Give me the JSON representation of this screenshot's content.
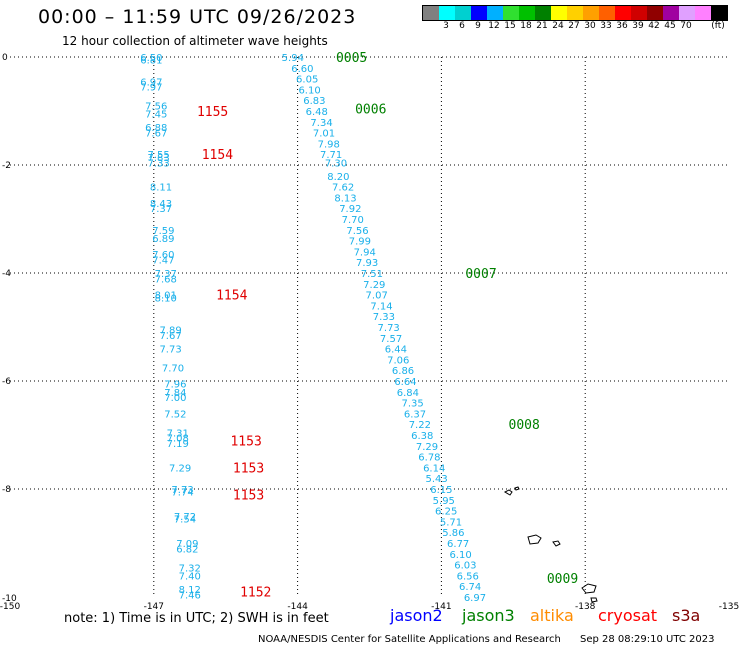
{
  "title": "00:00 – 11:59 UTC 09/26/2023",
  "subtitle": "12 hour collection of altimeter wave heights",
  "colorbar": {
    "colors": [
      "#808080",
      "#00ffff",
      "#00d0d0",
      "#0000ff",
      "#00b0ff",
      "#30e030",
      "#00c000",
      "#008000",
      "#ffff00",
      "#ffd000",
      "#ffa000",
      "#ff6000",
      "#ff0000",
      "#d00000",
      "#900000",
      "#a000a0",
      "#e0a0ff",
      "#ff80ff",
      "#000000"
    ],
    "labels": [
      "3",
      "6",
      "9",
      "12",
      "15",
      "18",
      "21",
      "24",
      "27",
      "30",
      "33",
      "36",
      "39",
      "42",
      "45",
      "70",
      "(ft)"
    ]
  },
  "axes": {
    "x_ticks": [
      "-150",
      "-147",
      "-144",
      "-141",
      "-138",
      "-135"
    ],
    "y_ticks": [
      "0",
      "-2",
      "-4",
      "-6",
      "-8",
      "-10"
    ]
  },
  "tracks": [
    {
      "satellite": "cryosat",
      "labels": [
        {
          "text": "1155",
          "lon": -146.1,
          "lat": -1.0
        },
        {
          "text": "1154",
          "lon": -146.0,
          "lat": -1.8
        },
        {
          "text": "1154",
          "lon": -145.7,
          "lat": -4.4
        },
        {
          "text": "1153",
          "lon": -145.4,
          "lat": -7.1
        },
        {
          "text": "1153",
          "lon": -145.35,
          "lat": -7.6
        },
        {
          "text": "1153",
          "lon": -145.35,
          "lat": -8.1
        },
        {
          "text": "1152",
          "lon": -145.2,
          "lat": -9.9
        }
      ],
      "points": [
        {
          "v": "6.50",
          "lon": -147.05,
          "lat": 0.0
        },
        {
          "v": "6.81",
          "lon": -147.05,
          "lat": -0.05
        },
        {
          "v": "6.97",
          "lon": -147.05,
          "lat": -0.45
        },
        {
          "v": "7.97",
          "lon": -147.05,
          "lat": -0.55
        },
        {
          "v": "7.56",
          "lon": -146.95,
          "lat": -0.9
        },
        {
          "v": "7.45",
          "lon": -146.95,
          "lat": -1.05
        },
        {
          "v": "6.88",
          "lon": -146.95,
          "lat": -1.3
        },
        {
          "v": "7.67",
          "lon": -146.95,
          "lat": -1.4
        },
        {
          "v": "7.55",
          "lon": -146.9,
          "lat": -1.8
        },
        {
          "v": "7.83",
          "lon": -146.9,
          "lat": -1.85
        },
        {
          "v": "7.33",
          "lon": -146.9,
          "lat": -1.95
        },
        {
          "v": "8.11",
          "lon": -146.85,
          "lat": -2.4
        },
        {
          "v": "8.43",
          "lon": -146.85,
          "lat": -2.7
        },
        {
          "v": "7.37",
          "lon": -146.85,
          "lat": -2.8
        },
        {
          "v": "7.59",
          "lon": -146.8,
          "lat": -3.2
        },
        {
          "v": "6.89",
          "lon": -146.8,
          "lat": -3.35
        },
        {
          "v": "7.60",
          "lon": -146.8,
          "lat": -3.65
        },
        {
          "v": "7.47",
          "lon": -146.8,
          "lat": -3.75
        },
        {
          "v": "7.37",
          "lon": -146.75,
          "lat": -4.0
        },
        {
          "v": "7.68",
          "lon": -146.75,
          "lat": -4.1
        },
        {
          "v": "8.01",
          "lon": -146.75,
          "lat": -4.4
        },
        {
          "v": "8.10",
          "lon": -146.75,
          "lat": -4.45
        },
        {
          "v": "7.89",
          "lon": -146.65,
          "lat": -5.05
        },
        {
          "v": "7.67",
          "lon": -146.65,
          "lat": -5.15
        },
        {
          "v": "7.73",
          "lon": -146.65,
          "lat": -5.4
        },
        {
          "v": "7.70",
          "lon": -146.6,
          "lat": -5.75
        },
        {
          "v": "7.96",
          "lon": -146.55,
          "lat": -6.05
        },
        {
          "v": "7.84",
          "lon": -146.55,
          "lat": -6.2
        },
        {
          "v": "7.00",
          "lon": -146.55,
          "lat": -6.3
        },
        {
          "v": "7.52",
          "lon": -146.55,
          "lat": -6.6
        },
        {
          "v": "7.31",
          "lon": -146.5,
          "lat": -6.95
        },
        {
          "v": "7.08",
          "lon": -146.5,
          "lat": -7.05
        },
        {
          "v": "7.19",
          "lon": -146.5,
          "lat": -7.15
        },
        {
          "v": "7.29",
          "lon": -146.45,
          "lat": -7.6
        },
        {
          "v": "7.73",
          "lon": -146.4,
          "lat": -8.0
        },
        {
          "v": "7.74",
          "lon": -146.4,
          "lat": -8.05
        },
        {
          "v": "7.72",
          "lon": -146.35,
          "lat": -8.5
        },
        {
          "v": "7.54",
          "lon": -146.35,
          "lat": -8.55
        },
        {
          "v": "7.09",
          "lon": -146.3,
          "lat": -9.0
        },
        {
          "v": "6.82",
          "lon": -146.3,
          "lat": -9.1
        },
        {
          "v": "7.32",
          "lon": -146.25,
          "lat": -9.45
        },
        {
          "v": "7.40",
          "lon": -146.25,
          "lat": -9.6
        },
        {
          "v": "8.12",
          "lon": -146.25,
          "lat": -9.85
        },
        {
          "v": "7.46",
          "lon": -146.25,
          "lat": -9.95
        }
      ]
    },
    {
      "satellite": "jason3",
      "labels": [
        {
          "text": "0005",
          "lon": -143.2,
          "lat": 0.0
        },
        {
          "text": "0006",
          "lon": -142.8,
          "lat": -0.95
        },
        {
          "text": "0007",
          "lon": -140.5,
          "lat": -4.0
        },
        {
          "text": "0008",
          "lon": -139.6,
          "lat": -6.8
        },
        {
          "text": "0009",
          "lon": -138.8,
          "lat": -9.65
        }
      ],
      "points": [
        {
          "v": "5.94",
          "lon": -144.1,
          "lat": 0.0
        },
        {
          "v": "6.60",
          "lon": -143.9,
          "lat": -0.2
        },
        {
          "v": "6.05",
          "lon": -143.8,
          "lat": -0.4
        },
        {
          "v": "6.10",
          "lon": -143.75,
          "lat": -0.6
        },
        {
          "v": "6.83",
          "lon": -143.65,
          "lat": -0.8
        },
        {
          "v": "6.48",
          "lon": -143.6,
          "lat": -1.0
        },
        {
          "v": "7.34",
          "lon": -143.5,
          "lat": -1.2
        },
        {
          "v": "7.01",
          "lon": -143.45,
          "lat": -1.4
        },
        {
          "v": "7.98",
          "lon": -143.35,
          "lat": -1.6
        },
        {
          "v": "7.71",
          "lon": -143.3,
          "lat": -1.8
        },
        {
          "v": "7.30",
          "lon": -143.2,
          "lat": -1.95
        },
        {
          "v": "8.20",
          "lon": -143.15,
          "lat": -2.2
        },
        {
          "v": "7.62",
          "lon": -143.05,
          "lat": -2.4
        },
        {
          "v": "8.13",
          "lon": -143.0,
          "lat": -2.6
        },
        {
          "v": "7.92",
          "lon": -142.9,
          "lat": -2.8
        },
        {
          "v": "7.70",
          "lon": -142.85,
          "lat": -3.0
        },
        {
          "v": "7.56",
          "lon": -142.75,
          "lat": -3.2
        },
        {
          "v": "7.99",
          "lon": -142.7,
          "lat": -3.4
        },
        {
          "v": "7.94",
          "lon": -142.6,
          "lat": -3.6
        },
        {
          "v": "7.93",
          "lon": -142.55,
          "lat": -3.8
        },
        {
          "v": "7.51",
          "lon": -142.45,
          "lat": -4.0
        },
        {
          "v": "7.29",
          "lon": -142.4,
          "lat": -4.2
        },
        {
          "v": "7.07",
          "lon": -142.35,
          "lat": -4.4
        },
        {
          "v": "7.14",
          "lon": -142.25,
          "lat": -4.6
        },
        {
          "v": "7.33",
          "lon": -142.2,
          "lat": -4.8
        },
        {
          "v": "7.73",
          "lon": -142.1,
          "lat": -5.0
        },
        {
          "v": "7.57",
          "lon": -142.05,
          "lat": -5.2
        },
        {
          "v": "6.44",
          "lon": -141.95,
          "lat": -5.4
        },
        {
          "v": "7.06",
          "lon": -141.9,
          "lat": -5.6
        },
        {
          "v": "6.86",
          "lon": -141.8,
          "lat": -5.8
        },
        {
          "v": "6.64",
          "lon": -141.75,
          "lat": -6.0
        },
        {
          "v": "6.84",
          "lon": -141.7,
          "lat": -6.2
        },
        {
          "v": "7.35",
          "lon": -141.6,
          "lat": -6.4
        },
        {
          "v": "6.37",
          "lon": -141.55,
          "lat": -6.6
        },
        {
          "v": "7.22",
          "lon": -141.45,
          "lat": -6.8
        },
        {
          "v": "6.38",
          "lon": -141.4,
          "lat": -7.0
        },
        {
          "v": "7.29",
          "lon": -141.3,
          "lat": -7.2
        },
        {
          "v": "6.78",
          "lon": -141.25,
          "lat": -7.4
        },
        {
          "v": "6.14",
          "lon": -141.15,
          "lat": -7.6
        },
        {
          "v": "5.43",
          "lon": -141.1,
          "lat": -7.8
        },
        {
          "v": "6.15",
          "lon": -141.0,
          "lat": -8.0
        },
        {
          "v": "5.95",
          "lon": -140.95,
          "lat": -8.2
        },
        {
          "v": "6.25",
          "lon": -140.9,
          "lat": -8.4
        },
        {
          "v": "5.71",
          "lon": -140.8,
          "lat": -8.6
        },
        {
          "v": "5.86",
          "lon": -140.75,
          "lat": -8.8
        },
        {
          "v": "6.77",
          "lon": -140.65,
          "lat": -9.0
        },
        {
          "v": "6.10",
          "lon": -140.6,
          "lat": -9.2
        },
        {
          "v": "6.03",
          "lon": -140.5,
          "lat": -9.4
        },
        {
          "v": "6.56",
          "lon": -140.45,
          "lat": -9.6
        },
        {
          "v": "6.74",
          "lon": -140.4,
          "lat": -9.8
        },
        {
          "v": "6.97",
          "lon": -140.3,
          "lat": -10.0
        }
      ]
    }
  ],
  "legend": {
    "note": "note: 1) Time is in UTC; 2) SWH is in feet",
    "satellites": [
      {
        "name": "jason2",
        "color": "#0000ff"
      },
      {
        "name": "jason3",
        "color": "#008000"
      },
      {
        "name": "altika",
        "color": "#ff8c00"
      },
      {
        "name": "cryosat",
        "color": "#ff0000"
      },
      {
        "name": "s3a",
        "color": "#800000"
      }
    ]
  },
  "footer": {
    "source": "NOAA/NESDIS Center for Satellite Applications and Research",
    "timestamp": "Sep 28 08:29:10 UTC 2023"
  }
}
